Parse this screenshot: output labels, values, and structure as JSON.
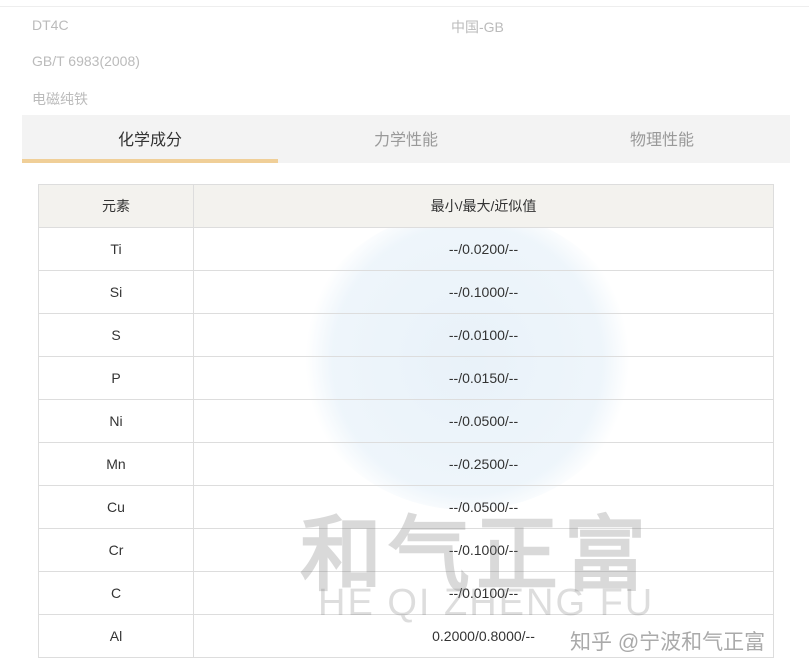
{
  "meta": {
    "grade": "DT4C",
    "country": "中国-GB",
    "standard": "GB/T 6983(2008)",
    "category": "电磁纯铁"
  },
  "tabs": [
    {
      "label": "化学成分",
      "active": true
    },
    {
      "label": "力学性能",
      "active": false
    },
    {
      "label": "物理性能",
      "active": false
    }
  ],
  "table": {
    "headers": [
      "元素",
      "最小/最大/近似值"
    ],
    "rows": [
      [
        "Ti",
        "--/0.0200/--"
      ],
      [
        "Si",
        "--/0.1000/--"
      ],
      [
        "S",
        "--/0.0100/--"
      ],
      [
        "P",
        "--/0.0150/--"
      ],
      [
        "Ni",
        "--/0.0500/--"
      ],
      [
        "Mn",
        "--/0.2500/--"
      ],
      [
        "Cu",
        "--/0.0500/--"
      ],
      [
        "Cr",
        "--/0.1000/--"
      ],
      [
        "C",
        "--/0.0100/--"
      ],
      [
        "Al",
        "0.2000/0.8000/--"
      ]
    ]
  },
  "watermark": {
    "cn": "和气正富",
    "en": "HE QI ZHENG FU",
    "zhihu": "知乎 @宁波和气正富"
  },
  "colors": {
    "tab_accent": "#f0cf98",
    "header_bg": "#f3f2ee"
  }
}
